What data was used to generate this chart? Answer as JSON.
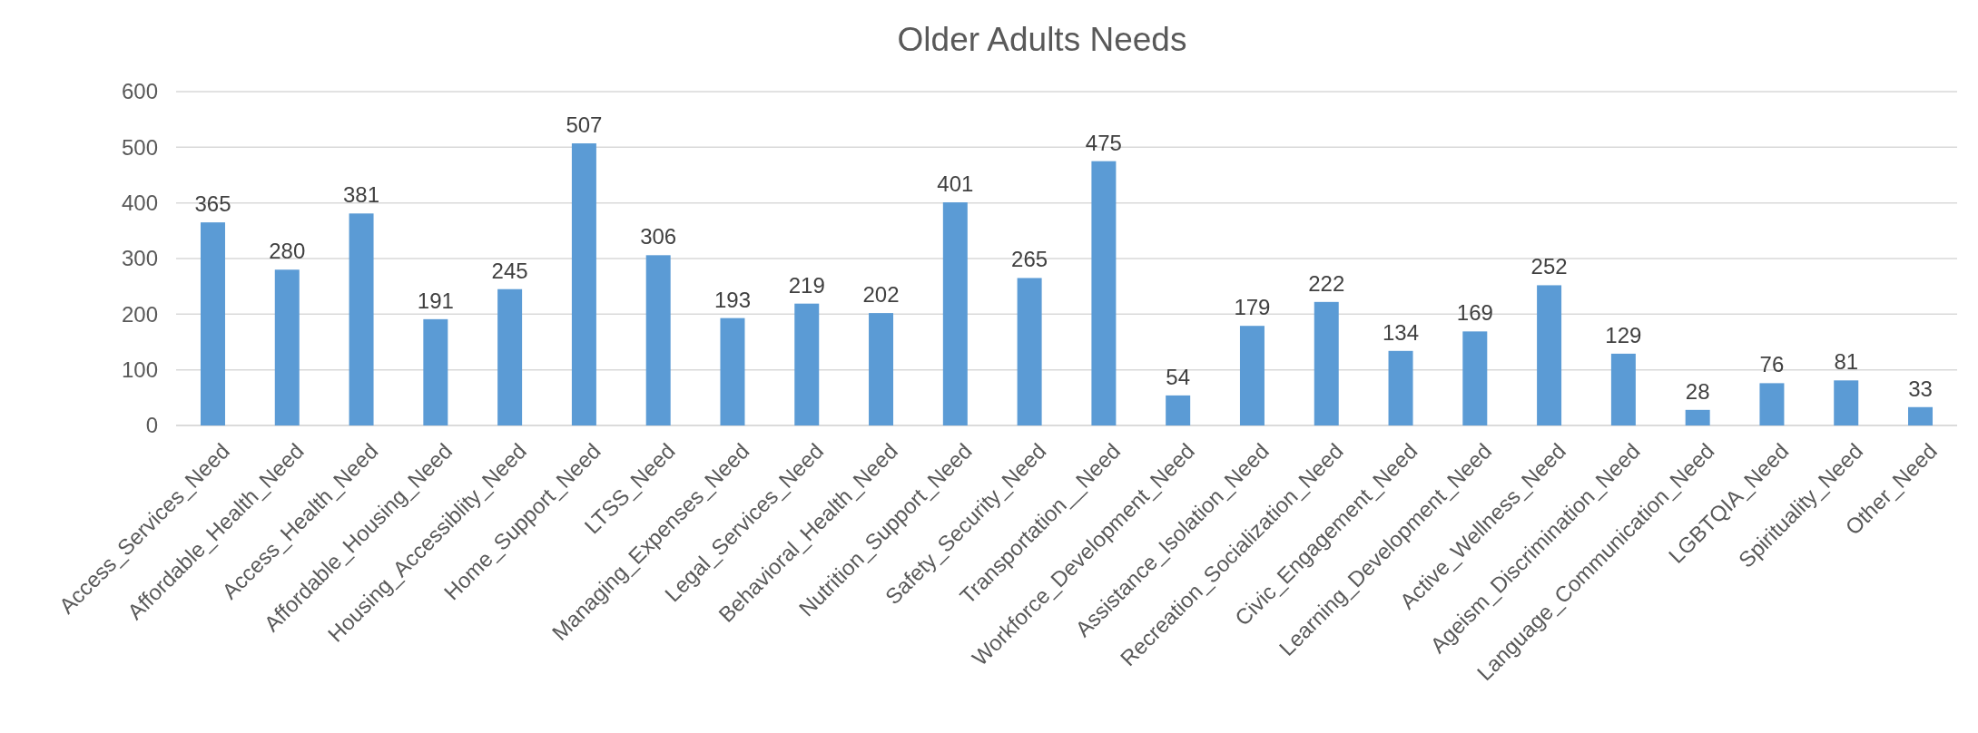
{
  "chart_data": {
    "type": "bar",
    "title": "Older Adults Needs",
    "categories": [
      "Access_Services_Need",
      "Affordable_Health_Need",
      "Access_Health_Need",
      "Affordable_Housing_Need",
      "Housing_Accessiblity_Need",
      "Home_Support_Need",
      "LTSS_Need",
      "Managing_Expenses_Need",
      "Legal_Services_Need",
      "Behavioral_Health_Need",
      "Nutrition_Support_Need",
      "Safety_Security_Need",
      "Transportation__Need",
      "Workforce_Development_Need",
      "Assistance_Isolation_Need",
      "Recreation_Socialization_Need",
      "Civic_Engagement_Need",
      "Learning_Development_Need",
      "Active_Wellness_Need",
      "Ageism_Discrimination_Need",
      "Language_Communication_Need",
      "LGBTQIA_Need",
      "Spirituality_Need",
      "Other_Need"
    ],
    "values": [
      365,
      280,
      381,
      191,
      245,
      507,
      306,
      193,
      219,
      202,
      401,
      265,
      475,
      54,
      179,
      222,
      134,
      169,
      252,
      129,
      28,
      76,
      81,
      33
    ],
    "color": "#5b9bd5",
    "ylim": [
      0,
      600
    ],
    "yticks": [
      0,
      100,
      200,
      300,
      400,
      500,
      600
    ],
    "grid": "y",
    "data_labels": true
  }
}
